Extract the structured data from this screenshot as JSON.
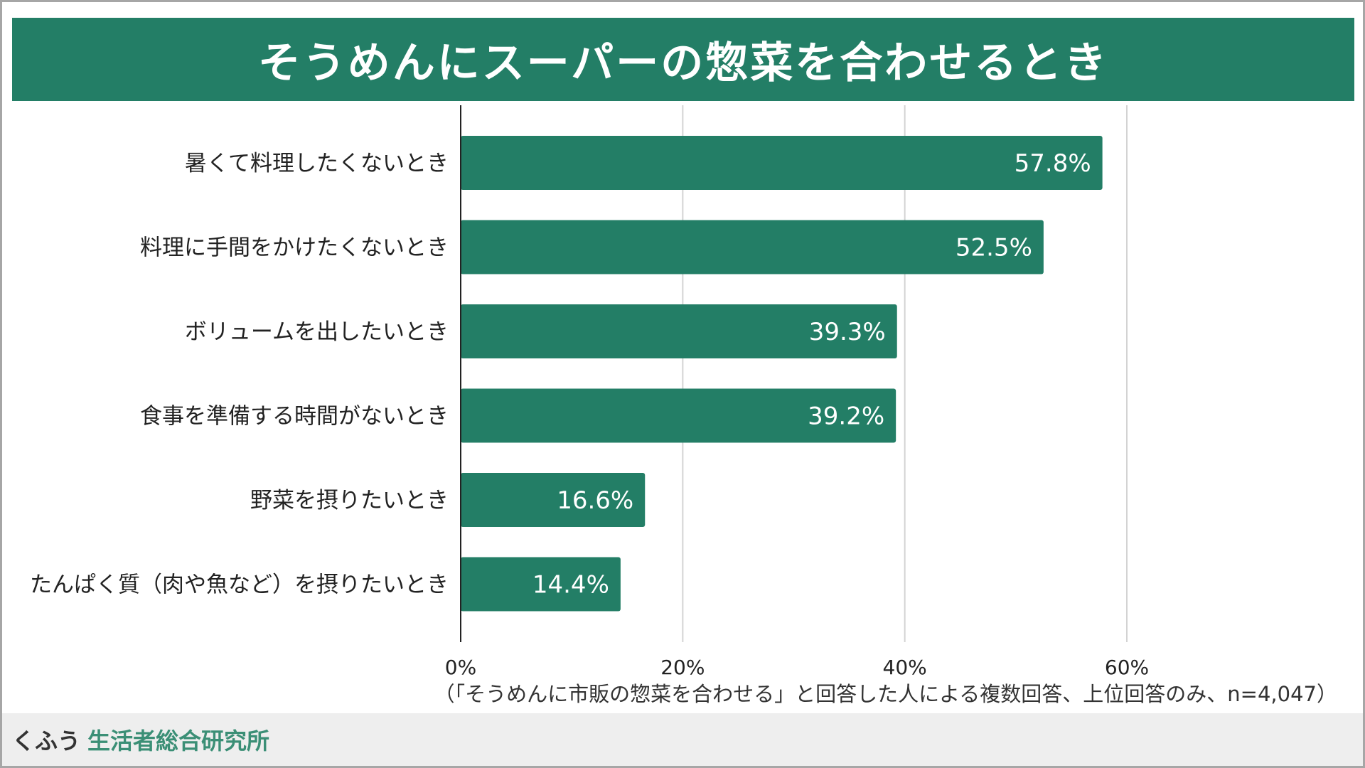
{
  "colors": {
    "accent": "#237e66",
    "text": "#222222",
    "grid": "#d3d3d3",
    "axis": "#222222",
    "bar_label": "#ffffff",
    "brand_green": "#3b8f76"
  },
  "header": {
    "title": "そうめんにスーパーの惣菜を合わせるとき"
  },
  "chart_data": {
    "type": "bar",
    "orientation": "horizontal",
    "title": "そうめんにスーパーの惣菜を合わせるとき",
    "categories": [
      "暑くて料理したくないとき",
      "料理に手間をかけたくないとき",
      "ボリュームを出したいとき",
      "食事を準備する時間がないとき",
      "野菜を摂りたいとき",
      "たんぱく質（肉や魚など）を摂りたいとき"
    ],
    "values": [
      57.8,
      52.5,
      39.3,
      39.2,
      16.6,
      14.4
    ],
    "value_labels": [
      "57.8%",
      "52.5%",
      "39.3%",
      "39.2%",
      "16.6%",
      "14.4%"
    ],
    "xlim": [
      0,
      60
    ],
    "xticks": [
      0,
      20,
      40,
      60
    ],
    "xtick_labels": [
      "0%",
      "20%",
      "40%",
      "60%"
    ],
    "xlabel": "",
    "ylabel": "",
    "grid": true,
    "legend": "none"
  },
  "note": {
    "text": "（「そうめんに市販の惣菜を合わせる」と回答した人による複数回答、上位回答のみ、n=4,047）"
  },
  "footer": {
    "brand_prefix": "くふう",
    "brand_name": "生活者総合研究所"
  }
}
